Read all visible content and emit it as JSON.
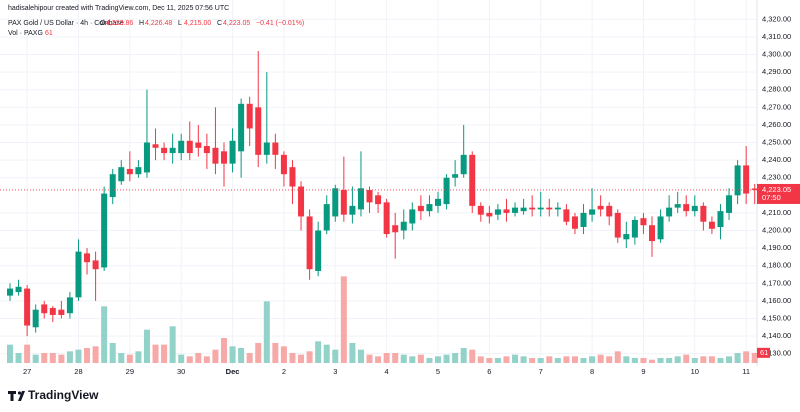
{
  "header": {
    "attribution": "hadisalehipour created with TradingView.com, Dec 11, 2025 07:56 UTC",
    "symbol": "PAX Gold / US Dollar · 4h · Coinbase",
    "ohlc": [
      {
        "label": "O",
        "value": "4,223.86"
      },
      {
        "label": "H",
        "value": "4,226.48"
      },
      {
        "label": "L",
        "value": "4,215.00"
      },
      {
        "label": "C",
        "value": "4,223.05"
      }
    ],
    "change": "−0.41 (−0.01%)",
    "volume_title": "Vol · PAXG"
  },
  "brand": "TradingView",
  "chart_data": {
    "type": "candlestick",
    "categories": [
      null,
      null,
      "27",
      null,
      null,
      null,
      null,
      null,
      "28",
      null,
      null,
      null,
      null,
      null,
      "29",
      null,
      null,
      null,
      null,
      null,
      "30",
      null,
      null,
      null,
      null,
      null,
      "Dec",
      null,
      null,
      null,
      null,
      null,
      "2",
      null,
      null,
      null,
      null,
      null,
      "3",
      null,
      null,
      null,
      null,
      null,
      "4",
      null,
      null,
      null,
      null,
      null,
      "5",
      null,
      null,
      null,
      null,
      null,
      "6",
      null,
      null,
      null,
      null,
      null,
      "7",
      null,
      null,
      null,
      null,
      null,
      "8",
      null,
      null,
      null,
      null,
      null,
      "9",
      null,
      null,
      null,
      null,
      null,
      "10",
      null,
      null,
      null,
      null,
      null,
      "11",
      null
    ],
    "open": [
      4163,
      4165,
      4167,
      4145,
      4158,
      4156,
      4155,
      4153,
      4162,
      4187,
      4183,
      4179,
      4219,
      4228,
      4235,
      4232,
      4233,
      4249,
      4247,
      4244,
      4244,
      4251,
      4250,
      4248,
      4247,
      4245,
      4238,
      4245,
      4272,
      4270,
      4243,
      4250,
      4243,
      4236,
      4225,
      4208,
      4177,
      4200,
      4208,
      4223,
      4209,
      4212,
      4223,
      4220,
      4216,
      4203,
      4200,
      4204,
      4214,
      4211,
      4214,
      4215,
      4230,
      4232,
      4243,
      4214,
      4210,
      4209,
      4212,
      4210,
      4211,
      4213,
      4212,
      4213,
      4212,
      4212,
      4208,
      4202,
      4209,
      4214,
      4214,
      4210,
      4195,
      4196,
      4207,
      4203,
      4195,
      4208,
      4213,
      4215,
      4211,
      4214,
      4205,
      4202,
      4210,
      4220,
      4237,
      4223.86
    ],
    "high": [
      4170,
      4172,
      4169,
      4158,
      4160,
      4157,
      4160,
      4165,
      4195,
      4190,
      4188,
      4225,
      4235,
      4240,
      4245,
      4240,
      4280,
      4258,
      4250,
      4255,
      4255,
      4262,
      4260,
      4255,
      4270,
      4250,
      4258,
      4275,
      4276,
      4302,
      4290,
      4255,
      4245,
      4240,
      4228,
      4212,
      4205,
      4220,
      4226,
      4242,
      4225,
      4245,
      4225,
      4222,
      4218,
      4210,
      4212,
      4216,
      4220,
      4220,
      4222,
      4232,
      4240,
      4260,
      4245,
      4216,
      4214,
      4215,
      4218,
      4216,
      4218,
      4220,
      4222,
      4218,
      4216,
      4215,
      4210,
      4215,
      4224,
      4220,
      4216,
      4212,
      4205,
      4208,
      4210,
      4208,
      4212,
      4220,
      4222,
      4220,
      4220,
      4216,
      4208,
      4215,
      4224,
      4240,
      4248,
      4226.48
    ],
    "low": [
      4160,
      4163,
      4140,
      4142,
      4150,
      4148,
      4150,
      4150,
      4160,
      4175,
      4160,
      4177,
      4215,
      4226,
      4228,
      4230,
      4230,
      4240,
      4240,
      4238,
      4240,
      4240,
      4242,
      4235,
      4232,
      4225,
      4233,
      4230,
      4248,
      4236,
      4238,
      4235,
      4225,
      4215,
      4200,
      4172,
      4174,
      4198,
      4205,
      4205,
      4204,
      4208,
      4210,
      4210,
      4196,
      4184,
      4195,
      4200,
      4206,
      4208,
      4210,
      4212,
      4225,
      4230,
      4210,
      4205,
      4204,
      4206,
      4205,
      4208,
      4209,
      4208,
      4208,
      4208,
      4208,
      4203,
      4198,
      4198,
      4205,
      4208,
      4203,
      4193,
      4190,
      4192,
      4198,
      4185,
      4193,
      4205,
      4210,
      4208,
      4208,
      4200,
      4198,
      4195,
      4206,
      4215,
      4215,
      4215.0
    ],
    "close": [
      4167,
      4168,
      4146,
      4155,
      4153,
      4152,
      4152,
      4162,
      4188,
      4182,
      4178,
      4221,
      4232,
      4236,
      4232,
      4236,
      4250,
      4247,
      4244,
      4247,
      4251,
      4244,
      4247,
      4244,
      4238,
      4238,
      4251,
      4272,
      4258,
      4243,
      4250,
      4243,
      4232,
      4225,
      4208,
      4178,
      4200,
      4215,
      4224,
      4209,
      4214,
      4224,
      4216,
      4215,
      4198,
      4199,
      4205,
      4212,
      4211,
      4215,
      4218,
      4230,
      4232,
      4243,
      4214,
      4209,
      4208,
      4212,
      4210,
      4213,
      4213,
      4212,
      4213,
      4212,
      4213,
      4205,
      4201,
      4210,
      4212,
      4212,
      4208,
      4196,
      4198,
      4206,
      4203,
      4194,
      4208,
      4213,
      4215,
      4211,
      4214,
      4205,
      4201,
      4211,
      4220,
      4237,
      4221,
      4223.05
    ],
    "volume": [
      110,
      60,
      110,
      50,
      60,
      60,
      50,
      70,
      80,
      90,
      100,
      340,
      120,
      60,
      50,
      70,
      200,
      110,
      110,
      220,
      50,
      40,
      60,
      40,
      80,
      150,
      100,
      90,
      60,
      120,
      370,
      120,
      100,
      60,
      50,
      70,
      130,
      110,
      80,
      520,
      120,
      80,
      50,
      40,
      60,
      60,
      50,
      40,
      50,
      30,
      40,
      50,
      60,
      90,
      80,
      40,
      30,
      30,
      40,
      50,
      40,
      30,
      30,
      40,
      30,
      40,
      40,
      30,
      40,
      50,
      40,
      70,
      40,
      30,
      30,
      20,
      30,
      30,
      40,
      50,
      30,
      40,
      40,
      30,
      40,
      60,
      70,
      61
    ],
    "up_color": "#089981",
    "down_color": "#f23645",
    "volume_up_color": "#92d2c8",
    "volume_down_color": "#f7a9a8",
    "ylim": [
      4123,
      4331
    ],
    "yticks": [
      {
        "value": 4130,
        "label": "4,130.00"
      },
      {
        "value": 4140,
        "label": "4,140.00"
      },
      {
        "value": 4150,
        "label": "4,150.00"
      },
      {
        "value": 4160,
        "label": "4,160.00"
      },
      {
        "value": 4170,
        "label": "4,170.00"
      },
      {
        "value": 4180,
        "label": "4,180.00"
      },
      {
        "value": 4190,
        "label": "4,190.00"
      },
      {
        "value": 4200,
        "label": "4,200.00"
      },
      {
        "value": 4210,
        "label": "4,210.00"
      },
      {
        "value": 4230,
        "label": "4,230.00"
      },
      {
        "value": 4240,
        "label": "4,240.00"
      },
      {
        "value": 4250,
        "label": "4,250.00"
      },
      {
        "value": 4260,
        "label": "4,260.00"
      },
      {
        "value": 4270,
        "label": "4,270.00"
      },
      {
        "value": 4280,
        "label": "4,280.00"
      },
      {
        "value": 4290,
        "label": "4,290.00"
      },
      {
        "value": 4300,
        "label": "4,300.00"
      },
      {
        "value": 4310,
        "label": "4,310.00"
      },
      {
        "value": 4320,
        "label": "4,320.00"
      }
    ],
    "grid": true,
    "price_label": "4,223.05",
    "countdown": "07:50"
  }
}
